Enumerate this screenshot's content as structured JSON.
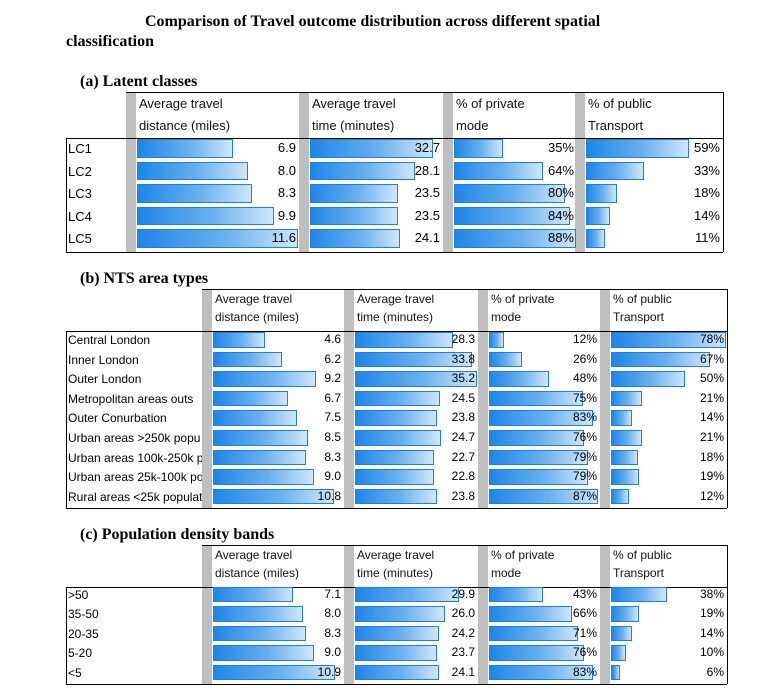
{
  "title_line1": "Comparison of Travel outcome distribution across different spatial",
  "title_line2": "classification",
  "headers": [
    [
      "Average travel",
      "distance (miles)"
    ],
    [
      "Average travel",
      "time (minutes)"
    ],
    [
      "% of private",
      "mode"
    ],
    [
      "% of public",
      "Transport"
    ]
  ],
  "sections": [
    {
      "title": "(a) Latent classes",
      "rows": [
        {
          "label": "LC1",
          "values": [
            "6.9",
            "32.7",
            "35%",
            "59%"
          ]
        },
        {
          "label": "LC2",
          "values": [
            "8.0",
            "28.1",
            "64%",
            "33%"
          ]
        },
        {
          "label": "LC3",
          "values": [
            "8.3",
            "23.5",
            "80%",
            "18%"
          ]
        },
        {
          "label": "LC4",
          "values": [
            "9.9",
            "23.5",
            "84%",
            "14%"
          ]
        },
        {
          "label": "LC5",
          "values": [
            "11.6",
            "24.1",
            "88%",
            "11%"
          ]
        }
      ]
    },
    {
      "title": "(b) NTS area types",
      "rows": [
        {
          "label": "Central London",
          "values": [
            "4.6",
            "28.3",
            "12%",
            "78%"
          ]
        },
        {
          "label": "Inner London",
          "values": [
            "6.2",
            "33.8",
            "26%",
            "67%"
          ]
        },
        {
          "label": "Outer London",
          "values": [
            "9.2",
            "35.2",
            "48%",
            "50%"
          ]
        },
        {
          "label": "Metropolitan areas outs",
          "values": [
            "6.7",
            "24.5",
            "75%",
            "21%"
          ]
        },
        {
          "label": "Outer Conurbation",
          "values": [
            "7.5",
            "23.8",
            "83%",
            "14%"
          ]
        },
        {
          "label": "Urban areas >250k popu",
          "values": [
            "8.5",
            "24.7",
            "76%",
            "21%"
          ]
        },
        {
          "label": "Urban areas 100k-250k p",
          "values": [
            "8.3",
            "22.7",
            "79%",
            "18%"
          ]
        },
        {
          "label": "Urban areas 25k-100k po",
          "values": [
            "9.0",
            "22.8",
            "79%",
            "19%"
          ]
        },
        {
          "label": "Rural areas <25k populat",
          "values": [
            "10.8",
            "23.8",
            "87%",
            "12%"
          ]
        }
      ]
    },
    {
      "title": "(c) Population density bands",
      "rows": [
        {
          "label": ">50",
          "values": [
            "7.1",
            "29.9",
            "43%",
            "38%"
          ]
        },
        {
          "label": "35-50",
          "values": [
            "8.0",
            "26.0",
            "66%",
            "19%"
          ]
        },
        {
          "label": "20-35",
          "values": [
            "8.3",
            "24.2",
            "71%",
            "14%"
          ]
        },
        {
          "label": "5-20",
          "values": [
            "9.0",
            "23.7",
            "76%",
            "10%"
          ]
        },
        {
          "label": "<5",
          "values": [
            "10.9",
            "24.1",
            "83%",
            "6%"
          ]
        }
      ]
    }
  ],
  "bar_max": [
    11.6,
    35.2,
    88,
    78
  ],
  "colors": {
    "bar_dark": "#1f86e8",
    "bar_light": "#cfe6fb",
    "separator": "#bfbfbf"
  }
}
